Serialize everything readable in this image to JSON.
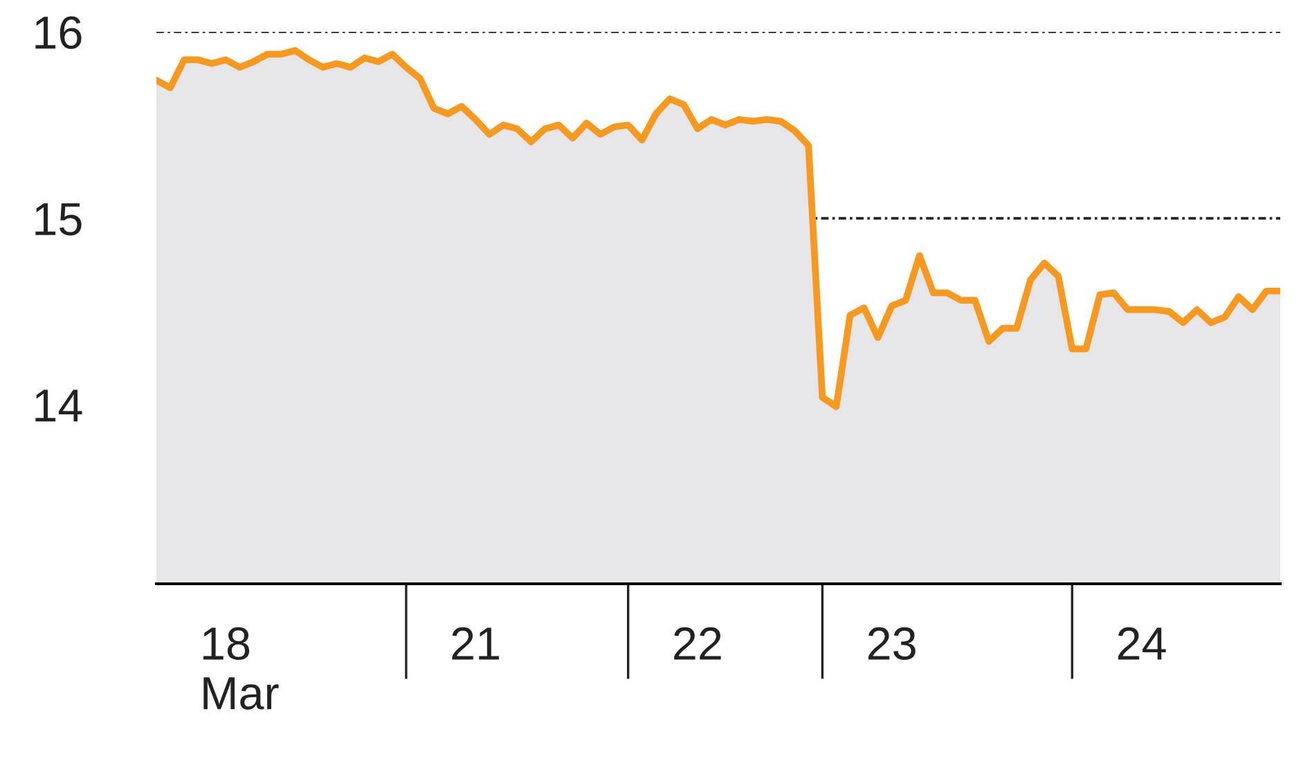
{
  "chart_data": {
    "type": "area",
    "categories": [
      null,
      null,
      null,
      null,
      null,
      null,
      "18\nMar",
      null,
      null,
      null,
      null,
      null,
      null,
      null,
      null,
      null,
      null,
      null,
      null,
      null,
      null,
      null,
      null,
      "21",
      null,
      null,
      null,
      null,
      null,
      null,
      null,
      null,
      null,
      null,
      null,
      null,
      null,
      null,
      null,
      "22",
      null,
      null,
      null,
      null,
      null,
      null,
      null,
      null,
      null,
      null,
      null,
      null,
      null,
      "23",
      null,
      null,
      null,
      null,
      null,
      null,
      null,
      null,
      null,
      null,
      null,
      null,
      null,
      null,
      null,
      null,
      null,
      "24",
      null,
      null,
      null,
      null,
      null,
      null,
      null,
      null,
      null,
      null
    ],
    "series": [
      {
        "color": "#f7981f",
        "values": [
          15.74,
          15.7,
          15.85,
          15.85,
          15.83,
          15.85,
          15.81,
          15.84,
          15.88,
          15.88,
          15.9,
          15.85,
          15.81,
          15.83,
          15.81,
          15.86,
          15.84,
          15.88,
          15.81,
          15.75,
          15.59,
          15.56,
          15.6,
          15.53,
          15.45,
          15.5,
          15.48,
          15.41,
          15.48,
          15.5,
          15.43,
          15.51,
          15.45,
          15.49,
          15.5,
          15.42,
          15.56,
          15.64,
          15.61,
          15.48,
          15.53,
          15.5,
          15.53,
          15.52,
          15.53,
          15.52,
          15.47,
          15.39,
          14.04,
          13.99,
          14.48,
          14.52,
          14.36,
          14.53,
          14.56,
          14.8,
          14.6,
          14.6,
          14.56,
          14.56,
          14.34,
          14.41,
          14.41,
          14.67,
          14.76,
          14.69,
          14.3,
          14.3,
          14.59,
          14.6,
          14.51,
          14.51,
          14.51,
          14.5,
          14.44,
          14.51,
          14.44,
          14.47,
          14.58,
          14.51,
          14.61,
          14.61
        ]
      }
    ],
    "ylim": [
      13.04,
      16
    ],
    "yticks": [
      14,
      15,
      16
    ],
    "grid": "y",
    "line_style": "solid"
  }
}
